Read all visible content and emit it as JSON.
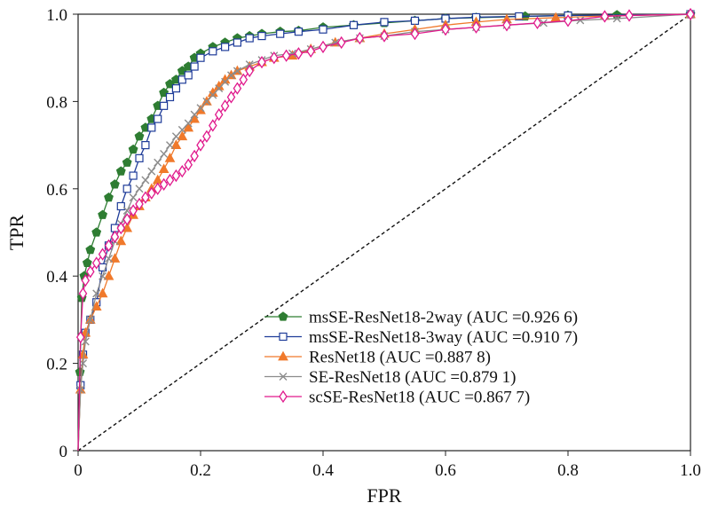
{
  "chart_data": {
    "type": "line",
    "xlabel": "FPR",
    "ylabel": "TPR",
    "xlim": [
      0,
      1
    ],
    "ylim": [
      0,
      1
    ],
    "x_ticks": [
      "0",
      "0.2",
      "0.4",
      "0.6",
      "0.8",
      "1.0"
    ],
    "y_ticks": [
      "0",
      "0.2",
      "0.4",
      "0.6",
      "0.8",
      "1.0"
    ],
    "grid": false,
    "legend_position": "bottom-right",
    "diagonal": true,
    "series": [
      {
        "name": "msSE-ResNet18-2way (AUC =0.926 6)",
        "color": "#2e7d32",
        "marker": "pentagon",
        "points": [
          [
            0,
            0
          ],
          [
            0.003,
            0.18
          ],
          [
            0.006,
            0.35
          ],
          [
            0.01,
            0.4
          ],
          [
            0.015,
            0.43
          ],
          [
            0.02,
            0.46
          ],
          [
            0.03,
            0.5
          ],
          [
            0.04,
            0.54
          ],
          [
            0.05,
            0.58
          ],
          [
            0.06,
            0.61
          ],
          [
            0.07,
            0.64
          ],
          [
            0.08,
            0.66
          ],
          [
            0.09,
            0.69
          ],
          [
            0.1,
            0.72
          ],
          [
            0.11,
            0.74
          ],
          [
            0.12,
            0.76
          ],
          [
            0.13,
            0.79
          ],
          [
            0.14,
            0.82
          ],
          [
            0.15,
            0.84
          ],
          [
            0.16,
            0.85
          ],
          [
            0.17,
            0.87
          ],
          [
            0.18,
            0.88
          ],
          [
            0.19,
            0.9
          ],
          [
            0.2,
            0.91
          ],
          [
            0.22,
            0.925
          ],
          [
            0.24,
            0.935
          ],
          [
            0.26,
            0.945
          ],
          [
            0.28,
            0.95
          ],
          [
            0.3,
            0.955
          ],
          [
            0.33,
            0.96
          ],
          [
            0.36,
            0.962
          ],
          [
            0.4,
            0.97
          ],
          [
            0.45,
            0.975
          ],
          [
            0.5,
            0.98
          ],
          [
            0.55,
            0.985
          ],
          [
            0.6,
            0.99
          ],
          [
            0.65,
            0.992
          ],
          [
            0.73,
            0.995
          ],
          [
            0.8,
            0.997
          ],
          [
            0.88,
            0.998
          ],
          [
            1.0,
            1.0
          ]
        ]
      },
      {
        "name": "msSE-ResNet18-3way (AUC =0.910 7)",
        "color": "#1f3c99",
        "marker": "square",
        "points": [
          [
            0,
            0
          ],
          [
            0.004,
            0.15
          ],
          [
            0.008,
            0.22
          ],
          [
            0.012,
            0.27
          ],
          [
            0.02,
            0.3
          ],
          [
            0.03,
            0.34
          ],
          [
            0.04,
            0.42
          ],
          [
            0.05,
            0.47
          ],
          [
            0.06,
            0.51
          ],
          [
            0.07,
            0.56
          ],
          [
            0.08,
            0.6
          ],
          [
            0.09,
            0.63
          ],
          [
            0.1,
            0.67
          ],
          [
            0.11,
            0.7
          ],
          [
            0.12,
            0.74
          ],
          [
            0.13,
            0.76
          ],
          [
            0.14,
            0.79
          ],
          [
            0.15,
            0.81
          ],
          [
            0.16,
            0.83
          ],
          [
            0.17,
            0.85
          ],
          [
            0.18,
            0.86
          ],
          [
            0.19,
            0.88
          ],
          [
            0.2,
            0.9
          ],
          [
            0.22,
            0.915
          ],
          [
            0.24,
            0.925
          ],
          [
            0.26,
            0.935
          ],
          [
            0.28,
            0.945
          ],
          [
            0.3,
            0.95
          ],
          [
            0.33,
            0.955
          ],
          [
            0.36,
            0.96
          ],
          [
            0.4,
            0.965
          ],
          [
            0.45,
            0.975
          ],
          [
            0.5,
            0.982
          ],
          [
            0.55,
            0.985
          ],
          [
            0.6,
            0.99
          ],
          [
            0.65,
            0.993
          ],
          [
            0.72,
            0.995
          ],
          [
            0.8,
            0.997
          ],
          [
            1.0,
            1.0
          ]
        ]
      },
      {
        "name": "ResNet18 (AUC =0.887 8)",
        "color": "#f0792b",
        "marker": "triangle",
        "points": [
          [
            0,
            0
          ],
          [
            0.004,
            0.14
          ],
          [
            0.008,
            0.22
          ],
          [
            0.012,
            0.27
          ],
          [
            0.02,
            0.3
          ],
          [
            0.03,
            0.33
          ],
          [
            0.04,
            0.36
          ],
          [
            0.05,
            0.4
          ],
          [
            0.06,
            0.44
          ],
          [
            0.07,
            0.48
          ],
          [
            0.08,
            0.51
          ],
          [
            0.09,
            0.54
          ],
          [
            0.1,
            0.56
          ],
          [
            0.11,
            0.58
          ],
          [
            0.12,
            0.6
          ],
          [
            0.13,
            0.62
          ],
          [
            0.14,
            0.645
          ],
          [
            0.15,
            0.67
          ],
          [
            0.16,
            0.7
          ],
          [
            0.17,
            0.72
          ],
          [
            0.18,
            0.74
          ],
          [
            0.19,
            0.76
          ],
          [
            0.2,
            0.78
          ],
          [
            0.21,
            0.8
          ],
          [
            0.22,
            0.82
          ],
          [
            0.23,
            0.835
          ],
          [
            0.24,
            0.85
          ],
          [
            0.25,
            0.86
          ],
          [
            0.26,
            0.87
          ],
          [
            0.28,
            0.88
          ],
          [
            0.3,
            0.89
          ],
          [
            0.32,
            0.9
          ],
          [
            0.35,
            0.905
          ],
          [
            0.38,
            0.92
          ],
          [
            0.42,
            0.935
          ],
          [
            0.46,
            0.945
          ],
          [
            0.5,
            0.955
          ],
          [
            0.55,
            0.965
          ],
          [
            0.6,
            0.975
          ],
          [
            0.65,
            0.982
          ],
          [
            0.7,
            0.988
          ],
          [
            0.78,
            0.992
          ],
          [
            0.86,
            0.996
          ],
          [
            1.0,
            1.0
          ]
        ]
      },
      {
        "name": "SE-ResNet18 (AUC =0.879 1)",
        "color": "#8c8c8c",
        "marker": "x",
        "points": [
          [
            0,
            0
          ],
          [
            0.004,
            0.14
          ],
          [
            0.008,
            0.2
          ],
          [
            0.012,
            0.25
          ],
          [
            0.02,
            0.3
          ],
          [
            0.03,
            0.36
          ],
          [
            0.04,
            0.4
          ],
          [
            0.05,
            0.44
          ],
          [
            0.06,
            0.48
          ],
          [
            0.07,
            0.52
          ],
          [
            0.08,
            0.55
          ],
          [
            0.09,
            0.58
          ],
          [
            0.1,
            0.6
          ],
          [
            0.11,
            0.62
          ],
          [
            0.12,
            0.64
          ],
          [
            0.13,
            0.66
          ],
          [
            0.14,
            0.68
          ],
          [
            0.15,
            0.7
          ],
          [
            0.16,
            0.72
          ],
          [
            0.17,
            0.735
          ],
          [
            0.18,
            0.75
          ],
          [
            0.19,
            0.77
          ],
          [
            0.2,
            0.785
          ],
          [
            0.21,
            0.8
          ],
          [
            0.22,
            0.815
          ],
          [
            0.23,
            0.83
          ],
          [
            0.24,
            0.845
          ],
          [
            0.25,
            0.86
          ],
          [
            0.26,
            0.87
          ],
          [
            0.28,
            0.885
          ],
          [
            0.3,
            0.895
          ],
          [
            0.32,
            0.905
          ],
          [
            0.35,
            0.91
          ],
          [
            0.38,
            0.92
          ],
          [
            0.42,
            0.935
          ],
          [
            0.46,
            0.945
          ],
          [
            0.5,
            0.95
          ],
          [
            0.55,
            0.96
          ],
          [
            0.6,
            0.965
          ],
          [
            0.65,
            0.97
          ],
          [
            0.7,
            0.975
          ],
          [
            0.76,
            0.98
          ],
          [
            0.82,
            0.986
          ],
          [
            0.88,
            0.99
          ],
          [
            1.0,
            1.0
          ]
        ]
      },
      {
        "name": "scSE-ResNet18 (AUC =0.867 7)",
        "color": "#e0198c",
        "marker": "diamond",
        "points": [
          [
            0,
            0
          ],
          [
            0.004,
            0.26
          ],
          [
            0.008,
            0.36
          ],
          [
            0.012,
            0.39
          ],
          [
            0.02,
            0.41
          ],
          [
            0.03,
            0.43
          ],
          [
            0.04,
            0.45
          ],
          [
            0.05,
            0.47
          ],
          [
            0.06,
            0.49
          ],
          [
            0.07,
            0.51
          ],
          [
            0.08,
            0.53
          ],
          [
            0.09,
            0.55
          ],
          [
            0.1,
            0.565
          ],
          [
            0.11,
            0.58
          ],
          [
            0.12,
            0.59
          ],
          [
            0.13,
            0.6
          ],
          [
            0.14,
            0.61
          ],
          [
            0.15,
            0.62
          ],
          [
            0.16,
            0.63
          ],
          [
            0.17,
            0.64
          ],
          [
            0.18,
            0.655
          ],
          [
            0.19,
            0.675
          ],
          [
            0.2,
            0.7
          ],
          [
            0.21,
            0.72
          ],
          [
            0.22,
            0.745
          ],
          [
            0.23,
            0.77
          ],
          [
            0.24,
            0.79
          ],
          [
            0.25,
            0.81
          ],
          [
            0.26,
            0.83
          ],
          [
            0.27,
            0.85
          ],
          [
            0.28,
            0.87
          ],
          [
            0.3,
            0.89
          ],
          [
            0.32,
            0.9
          ],
          [
            0.34,
            0.905
          ],
          [
            0.36,
            0.91
          ],
          [
            0.38,
            0.915
          ],
          [
            0.4,
            0.925
          ],
          [
            0.43,
            0.935
          ],
          [
            0.46,
            0.945
          ],
          [
            0.5,
            0.95
          ],
          [
            0.55,
            0.955
          ],
          [
            0.6,
            0.965
          ],
          [
            0.65,
            0.97
          ],
          [
            0.7,
            0.975
          ],
          [
            0.75,
            0.98
          ],
          [
            0.8,
            0.985
          ],
          [
            0.86,
            0.995
          ],
          [
            0.9,
            0.997
          ],
          [
            1.0,
            1.0
          ]
        ]
      }
    ]
  }
}
